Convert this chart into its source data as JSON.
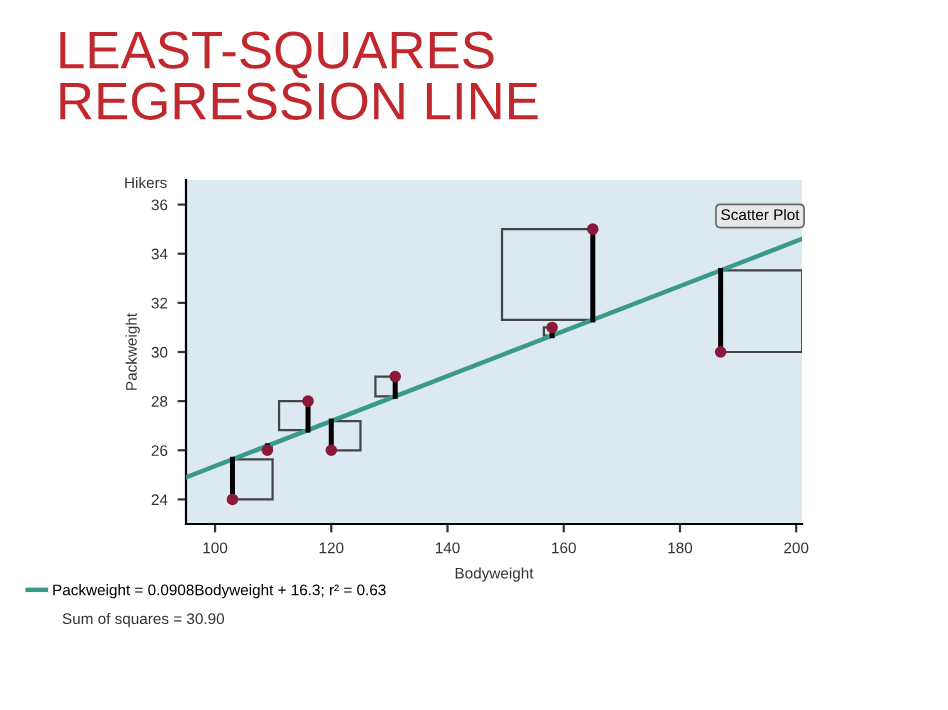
{
  "chart_data": {
    "type": "scatter",
    "title": "LEAST-SQUARES\nREGRESSION LINE",
    "subtitle": "Hikers",
    "xlabel": "Bodyweight",
    "ylabel": "Packweight",
    "annotations": [
      "Scatter Plot",
      "Sum of squares = 30.90"
    ],
    "x": [
      103,
      109,
      116,
      120,
      131,
      158,
      165,
      187
    ],
    "series": [
      {
        "color": "#8b1a3a",
        "marker": "circle",
        "values": [
          24,
          26,
          28,
          26,
          29,
          31,
          35,
          30
        ]
      },
      {
        "type": "line",
        "name": "Packweight = 0.0908Bodyweight + 16.3; r² = 0.63",
        "color": "#3a9a8a",
        "x": [
          95,
          201
        ],
        "marker": "none",
        "values": [
          24.9,
          34.6
        ]
      }
    ],
    "xlim": [
      95,
      201
    ],
    "ylim": [
      23,
      37
    ],
    "xticks": [
      100,
      120,
      140,
      160,
      180,
      200
    ],
    "yticks": [
      24,
      26,
      28,
      30,
      32,
      34,
      36
    ],
    "grid": false,
    "legend": "bottom"
  }
}
